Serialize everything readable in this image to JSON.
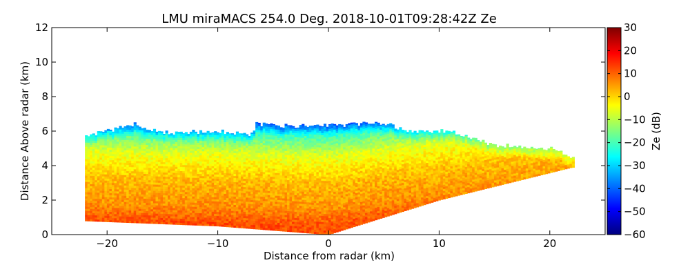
{
  "chart_data": {
    "type": "heatmap",
    "title": "LMU miraMACS 254.0 Deg. 2018-10-01T09:28:42Z  Ze",
    "xlabel": "Distance from radar (km)",
    "ylabel": "Distance Above radar  (km)",
    "xlim": [
      -25,
      25
    ],
    "ylim": [
      0,
      12
    ],
    "x_ticks": [
      -20,
      -10,
      0,
      10,
      20
    ],
    "x_tick_labels": [
      "−20",
      "−10",
      "0",
      "10",
      "20"
    ],
    "y_ticks": [
      0,
      2,
      4,
      6,
      8,
      10,
      12
    ],
    "y_tick_labels": [
      "0",
      "2",
      "4",
      "6",
      "8",
      "10",
      "12"
    ],
    "colorbar": {
      "label": "Ze (dB)",
      "range": [
        -60,
        30
      ],
      "ticks": [
        30,
        20,
        10,
        0,
        -10,
        -20,
        -30,
        -40,
        -50,
        -60
      ],
      "tick_labels": [
        "30",
        "20",
        "10",
        "0",
        "−10",
        "−20",
        "−30",
        "−40",
        "−50",
        "−60"
      ],
      "colormap": "jet"
    },
    "field": {
      "description_values": "Radar reflectivity RHI scan; echo occupies x from -22 to 22 km, heights 0 to ~6.5 km",
      "boundary_top": [
        [
          -22,
          5.7
        ],
        [
          -17.5,
          6.4
        ],
        [
          -15,
          5.9
        ],
        [
          -10,
          6.0
        ],
        [
          -7,
          5.8
        ],
        [
          -6.5,
          6.4
        ],
        [
          -4,
          6.3
        ],
        [
          0,
          6.3
        ],
        [
          5,
          6.5
        ],
        [
          7,
          6.0
        ],
        [
          11,
          6.0
        ],
        [
          15,
          5.2
        ],
        [
          20,
          5.0
        ],
        [
          22,
          4.5
        ]
      ],
      "boundary_bottom": [
        [
          -22,
          0.8
        ],
        [
          -10,
          0.5
        ],
        [
          0,
          0.0
        ],
        [
          10,
          2.0
        ],
        [
          22,
          3.9
        ]
      ],
      "reflectivity_profile_dB": [
        {
          "height_km": 0.5,
          "ze": 12
        },
        {
          "height_km": 1.5,
          "ze": 6
        },
        {
          "height_km": 3.0,
          "ze": 2
        },
        {
          "height_km": 4.5,
          "ze": -6
        },
        {
          "height_km": 5.5,
          "ze": -18
        },
        {
          "height_km": 6.3,
          "ze": -30
        }
      ]
    }
  }
}
